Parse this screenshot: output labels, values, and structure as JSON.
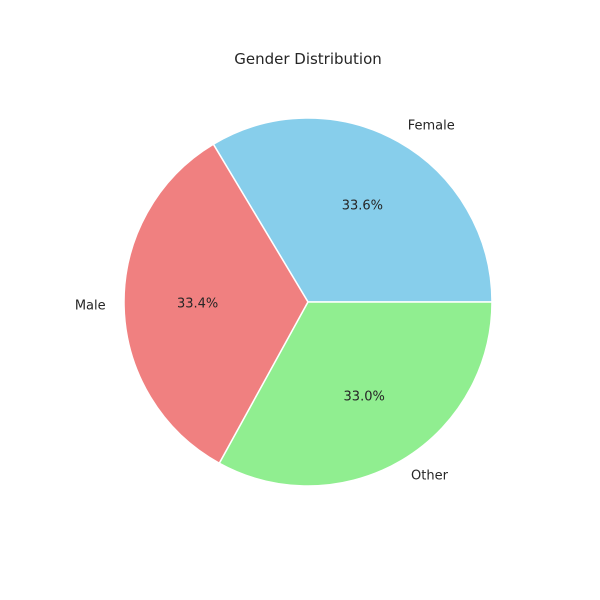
{
  "chart_data": {
    "type": "pie",
    "title": "Gender Distribution",
    "categories": [
      "Female",
      "Male",
      "Other"
    ],
    "values": [
      33.6,
      33.4,
      33.0
    ],
    "percent_labels": [
      "33.6%",
      "33.4%",
      "33.0%"
    ],
    "colors": [
      "#87ceeb",
      "#f08080",
      "#90ee90"
    ],
    "start_angle_deg": 0,
    "direction": "counterclockwise",
    "legend": "none"
  }
}
